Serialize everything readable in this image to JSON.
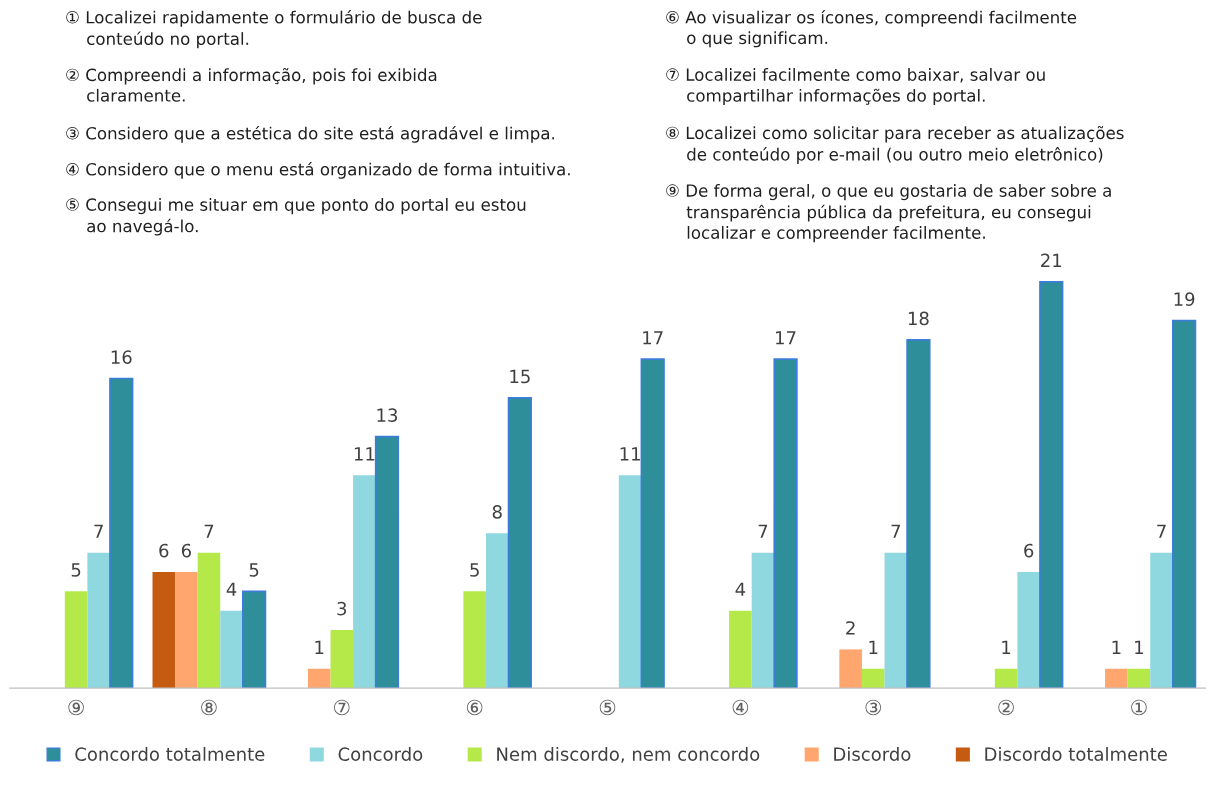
{
  "chart_data": {
    "type": "bar",
    "categories": [
      "⑨",
      "⑧",
      "⑦",
      "⑥",
      "⑤",
      "④",
      "③",
      "②",
      "①"
    ],
    "series": [
      {
        "name": "Discordo totalmente",
        "color": "#c55a11",
        "values": [
          null,
          6,
          null,
          null,
          null,
          null,
          null,
          null,
          null
        ]
      },
      {
        "name": "Discordo",
        "color": "#ffa66e",
        "values": [
          null,
          6,
          1,
          null,
          null,
          null,
          2,
          null,
          1
        ]
      },
      {
        "name": "Nem discordo, nem concordo",
        "color": "#b5e94a",
        "values": [
          5,
          7,
          3,
          5,
          null,
          4,
          1,
          1,
          1
        ]
      },
      {
        "name": "Concordo",
        "color": "#8fd8df",
        "values": [
          7,
          4,
          11,
          8,
          11,
          7,
          7,
          6,
          7
        ]
      },
      {
        "name": "Concordo totalmente",
        "color": "#2e8f9a",
        "values": [
          16,
          5,
          13,
          15,
          17,
          17,
          18,
          21,
          19
        ]
      }
    ],
    "data_labels": true,
    "legend": "bottom",
    "tick_labels": "x",
    "grid": false,
    "annotations": [
      "① Localizei rapidamente o formulário de busca de\n    conteúdo no portal.",
      "② Compreendi a informação, pois foi exibida\n    claramente.",
      "③ Considero que a estética do site está agradável e limpa.",
      "④ Considero que o menu está organizado de forma intuitiva.",
      "⑤ Consegui me situar em que ponto do portal eu estou\n    ao navegá-lo.",
      "⑥ Ao visualizar os ícones, compreendi facilmente\n    o que significam.",
      "⑦ Localizei facilmente como baixar, salvar ou\n    compartilhar informações do portal.",
      "⑧ Localizei como solicitar para receber as atualizações\n    de conteúdo por e-mail (ou outro meio eletrônico)",
      "⑨ De forma geral, o que eu gostaria de saber sobre a\n    transparência pública da prefeitura, eu consegui\n    localizar e compreender facilmente."
    ]
  }
}
